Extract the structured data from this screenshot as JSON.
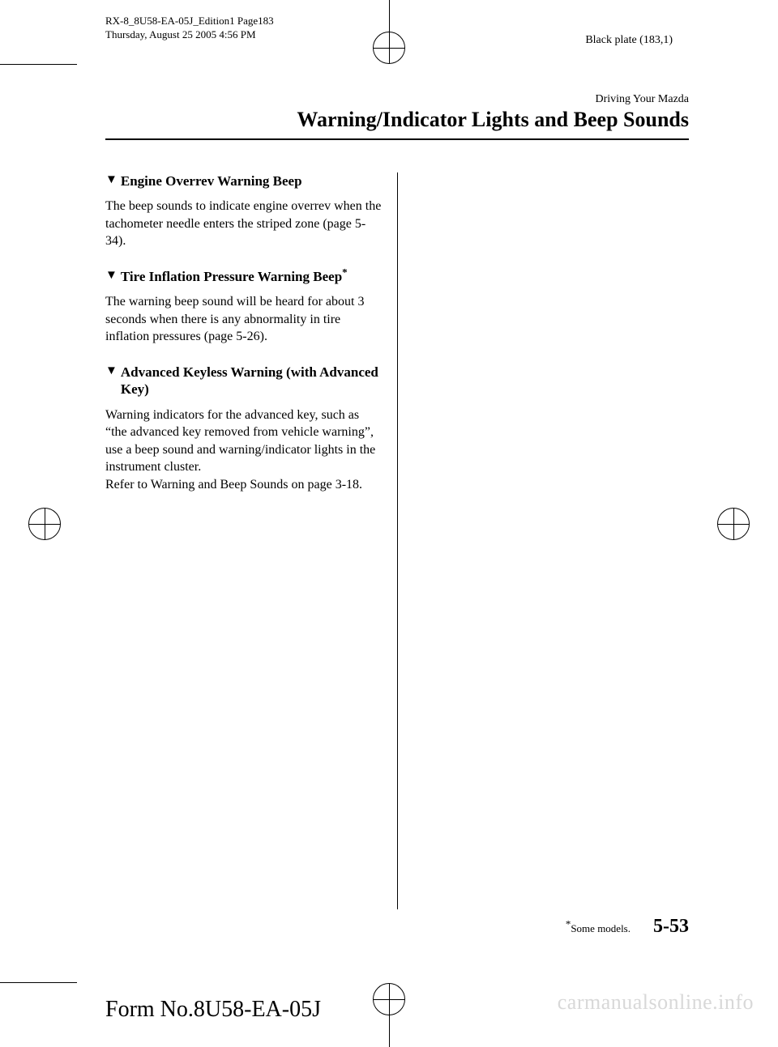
{
  "header": {
    "doc_id": "RX-8_8U58-EA-05J_Edition1 Page183",
    "timestamp": "Thursday, August 25 2005 4:56 PM",
    "plate_info": "Black plate (183,1)"
  },
  "chapter": {
    "pretitle": "Driving Your Mazda",
    "title": "Warning/Indicator Lights and Beep Sounds"
  },
  "sections": [
    {
      "heading": "Engine Overrev Warning Beep",
      "has_asterisk": false,
      "body": "The beep sounds to indicate engine overrev when the tachometer needle enters the striped zone (page 5-34)."
    },
    {
      "heading": "Tire Inflation Pressure Warning Beep",
      "has_asterisk": true,
      "body": "The warning beep sound will be heard for about 3 seconds when there is any abnormality in tire inflation pressures (page 5-26)."
    },
    {
      "heading": "Advanced Keyless Warning (with Advanced Key)",
      "has_asterisk": false,
      "body": "Warning indicators for the advanced key, such as “the advanced key removed from vehicle warning”, use a beep sound and warning/indicator lights in the instrument cluster.\nRefer to Warning and Beep Sounds on page 3-18."
    }
  ],
  "footer": {
    "note_marker": "*",
    "note_text": "Some models.",
    "page_number": "5-53",
    "form_number": "Form No.8U58-EA-05J"
  },
  "watermark": "carmanualsonline.info",
  "markers": {
    "triangle": "▼"
  }
}
